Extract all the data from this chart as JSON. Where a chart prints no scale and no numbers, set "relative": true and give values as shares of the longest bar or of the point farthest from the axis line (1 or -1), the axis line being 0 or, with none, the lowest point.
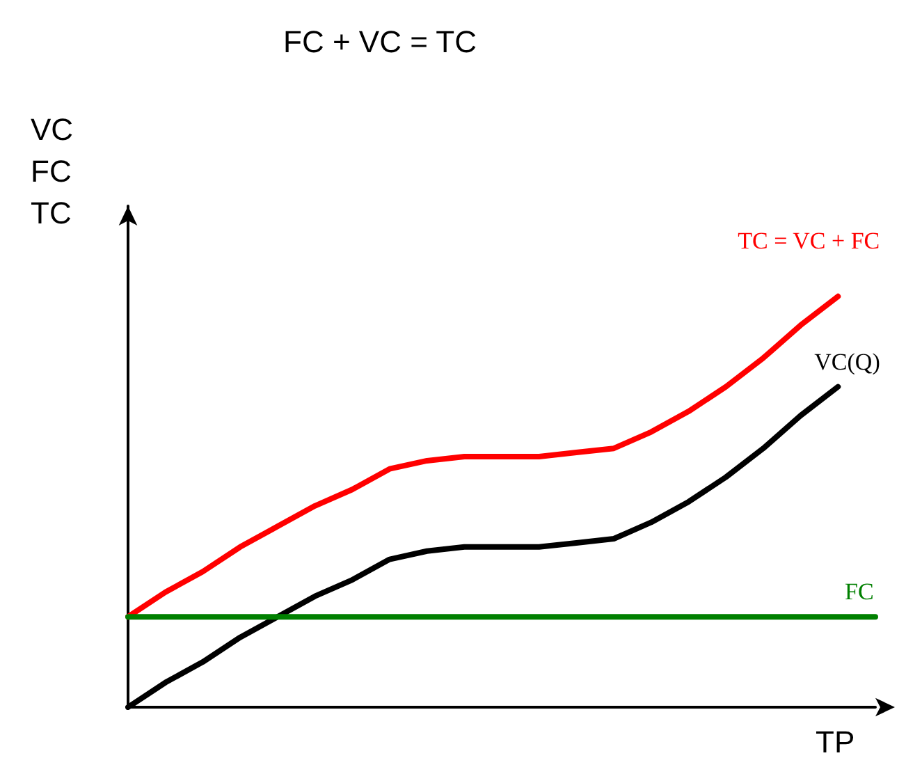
{
  "chart_data": {
    "type": "line",
    "title": "FC + VC = TC",
    "xlabel": "TP",
    "ylabel": "VC\nFC\nTC",
    "relative": true,
    "categories": [
      null,
      null,
      null,
      null,
      null,
      null,
      null,
      null,
      null,
      null,
      null,
      null,
      null,
      null,
      null,
      null,
      null,
      null,
      null,
      null,
      null
    ],
    "series": [
      {
        "name": "TC = VC + FC",
        "color": "#ff0000",
        "values": [
          0.22,
          0.28,
          0.33,
          0.39,
          0.44,
          0.49,
          0.53,
          0.58,
          0.6,
          0.61,
          0.61,
          0.61,
          0.62,
          0.63,
          0.67,
          0.72,
          0.78,
          0.85,
          0.93,
          1.0,
          null
        ]
      },
      {
        "name": "VC(Q)",
        "color": "#000000",
        "values": [
          0,
          0.06,
          0.11,
          0.17,
          0.22,
          0.27,
          0.31,
          0.36,
          0.38,
          0.39,
          0.39,
          0.39,
          0.4,
          0.41,
          0.45,
          0.5,
          0.56,
          0.63,
          0.71,
          0.78,
          null
        ]
      },
      {
        "name": "FC",
        "color": "#008000",
        "values": [
          0.22,
          0.22,
          0.22,
          0.22,
          0.22,
          0.22,
          0.22,
          0.22,
          0.22,
          0.22,
          0.22,
          0.22,
          0.22,
          0.22,
          0.22,
          0.22,
          0.22,
          0.22,
          0.22,
          0.22,
          0.22
        ]
      }
    ],
    "grid": false,
    "legend": false,
    "marker": "none",
    "line_style": "solid"
  }
}
